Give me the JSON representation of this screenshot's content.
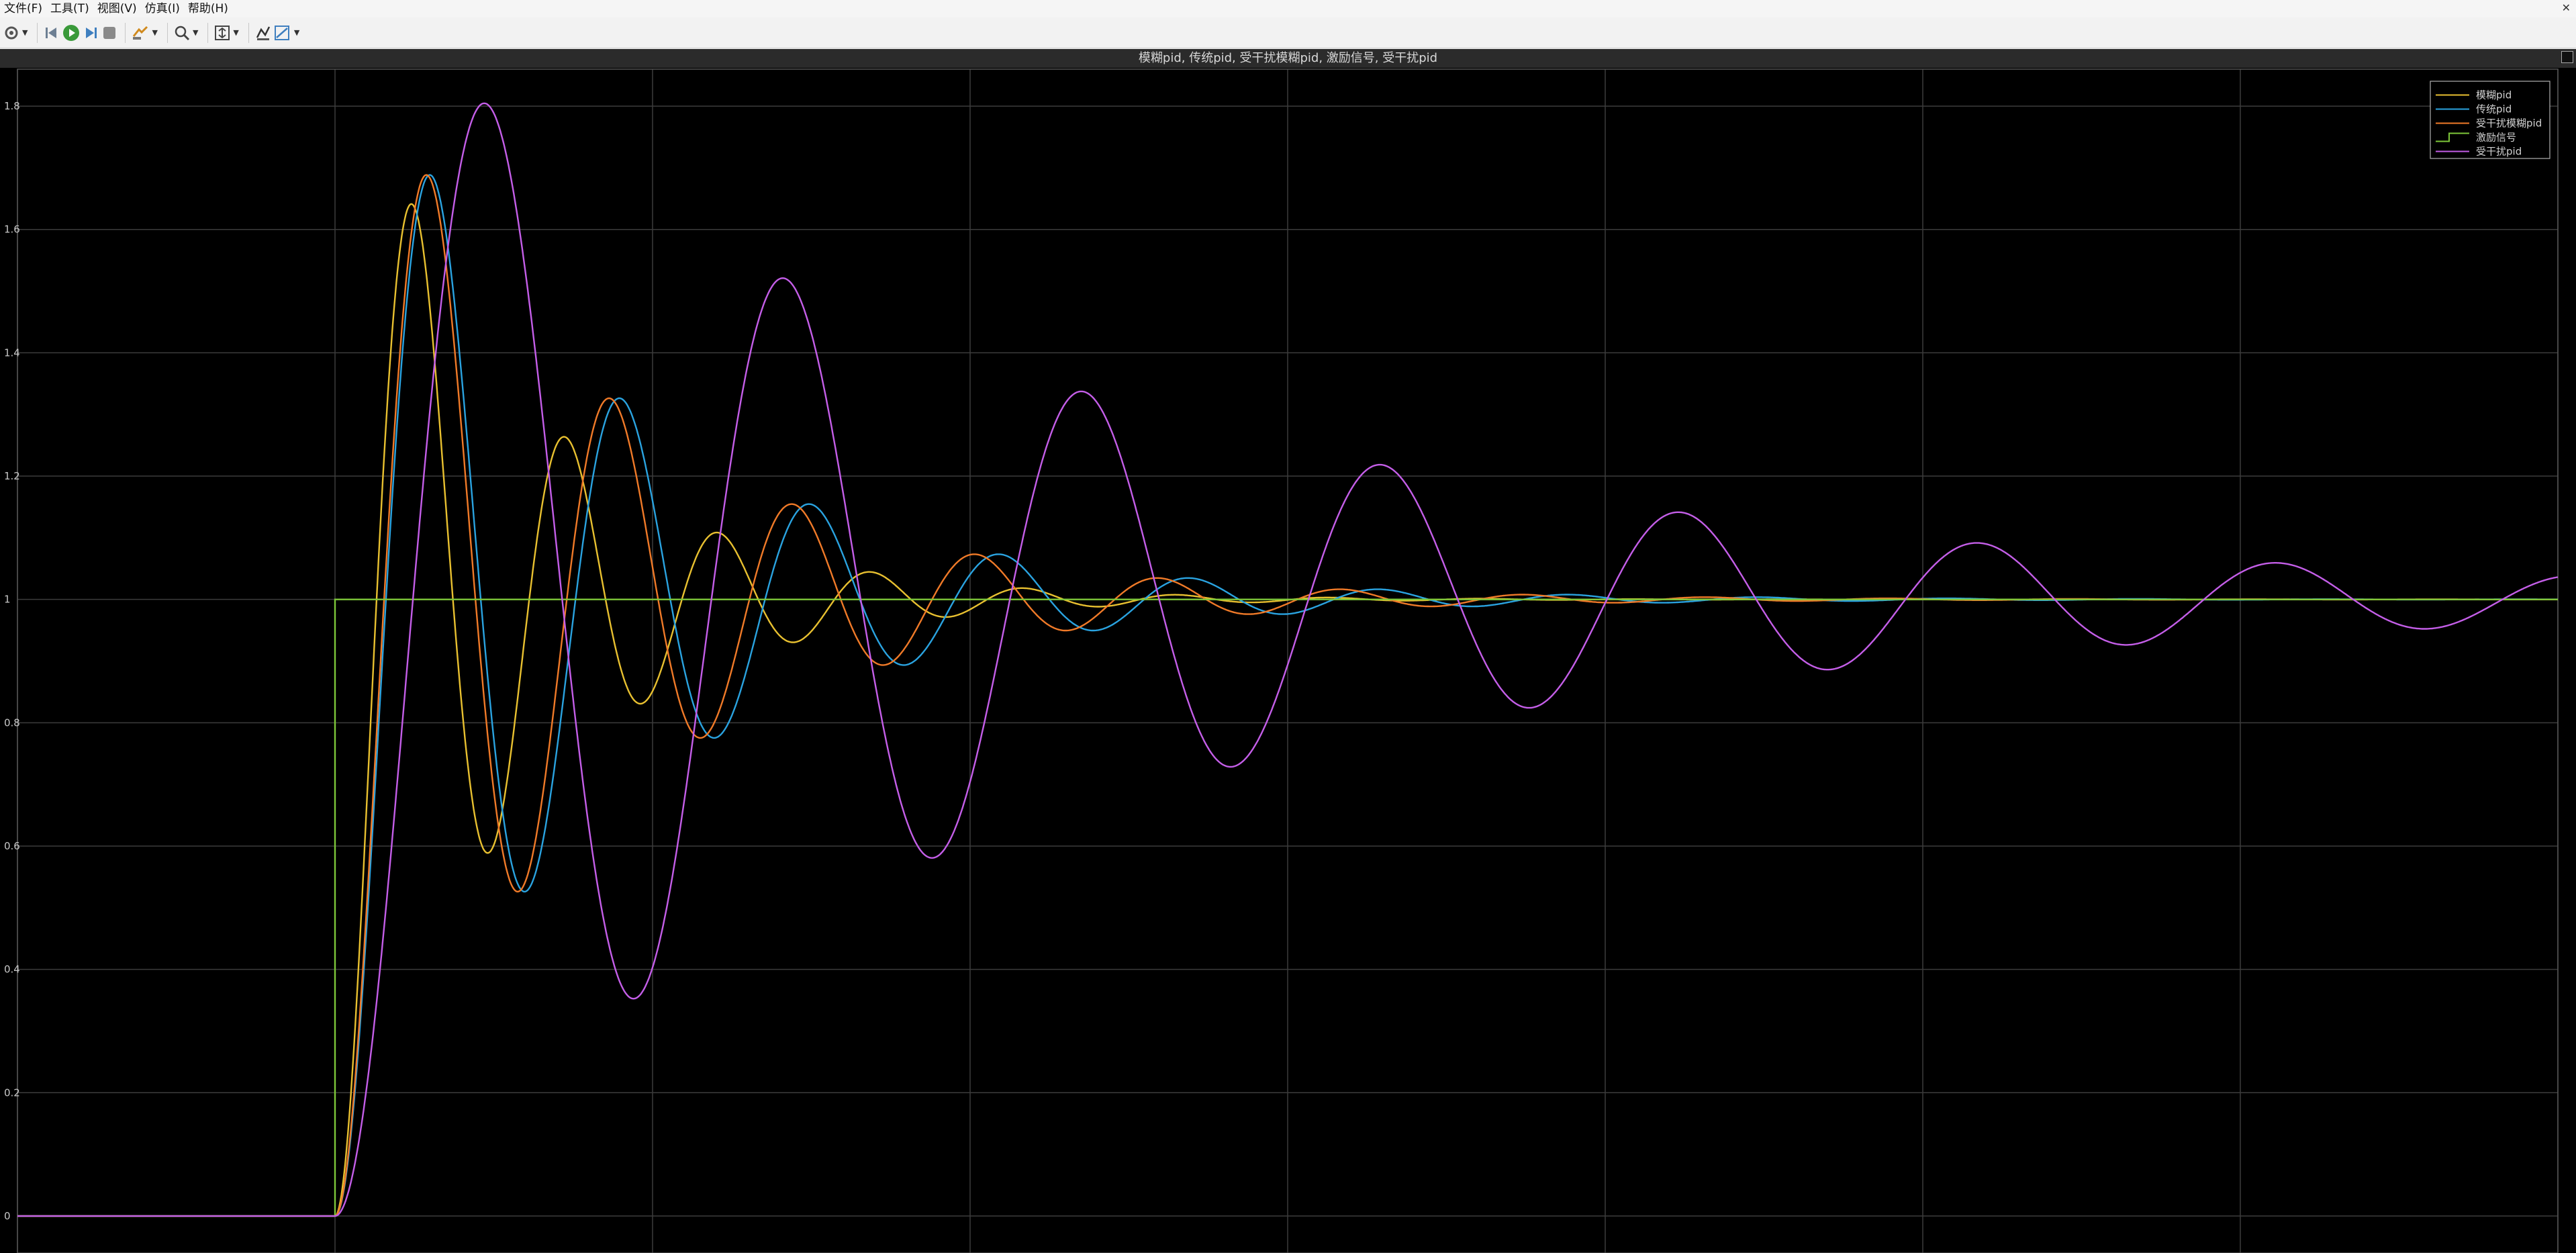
{
  "menubar": {
    "items": [
      "文件(F)",
      "工具(T)",
      "视图(V)",
      "仿真(I)",
      "帮助(H)"
    ],
    "close_glyph": "✕"
  },
  "toolbar": {
    "icons": [
      "settings-icon",
      "step-back-icon",
      "run-icon",
      "step-forward-icon",
      "stop-icon",
      "highlight-icon",
      "zoom-icon",
      "fit-to-view-icon",
      "cursor-measure-icon",
      "signal-stats-icon"
    ]
  },
  "chart_data": {
    "type": "line",
    "title": "模糊pid, 传统pid, 受干扰模糊pid, 激励信号, 受干扰pid",
    "xlabel": "",
    "ylabel": "",
    "xlim": [
      0,
      8
    ],
    "ylim": [
      -0.06,
      1.86
    ],
    "x_ticks": [],
    "x_grid": [
      0,
      1,
      2,
      3,
      4,
      5,
      6,
      7,
      8
    ],
    "y_ticks": [
      0,
      0.2,
      0.4,
      0.6,
      0.8,
      1,
      1.2,
      1.4,
      1.6,
      1.8
    ],
    "y_tick_labels": [
      "0",
      "0.2",
      "0.4",
      "0.6",
      "0.8",
      "1",
      "1.2",
      "1.4",
      "1.6",
      "1.8"
    ],
    "grid": true,
    "background": "#000000",
    "legend_position": "top-right",
    "series": [
      {
        "name": "模糊pid",
        "color": "#e8c030",
        "step_time": 1,
        "rise_time": 0.2,
        "wn": 13.2,
        "zeta": 0.14,
        "gain": 1
      },
      {
        "name": "传统pid",
        "color": "#2aa3e0",
        "step_time": 1,
        "rise_time": 0.26,
        "wn": 10.6,
        "zeta": 0.118,
        "gain": 1
      },
      {
        "name": "受干扰模糊pid",
        "color": "#f07a28",
        "step_time": 1,
        "rise_time": 0.22,
        "wn": 11.0,
        "zeta": 0.118,
        "gain": 1
      },
      {
        "name": "激励信号",
        "color": "#7ec83a",
        "kind": "step",
        "step_time": 1,
        "gain": 1
      },
      {
        "name": "受干扰pid",
        "color": "#c45ee8",
        "step_time": 1,
        "rise_time": 0.3,
        "wn": 6.7,
        "zeta": 0.069,
        "gain": 1
      }
    ]
  }
}
